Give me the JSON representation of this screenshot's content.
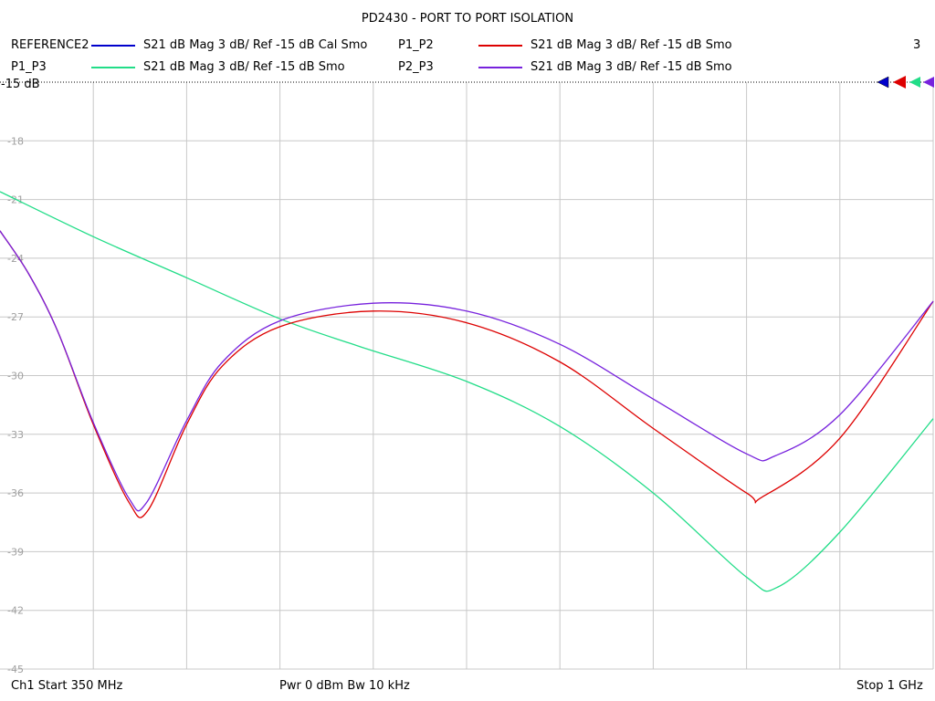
{
  "title": "PD2430 - PORT TO PORT ISOLATION",
  "legend": [
    {
      "name": "REFERENCE2",
      "desc": "S21  dB Mag  3 dB/ Ref -15 dB  Cal Smo",
      "color": "#0000cc"
    },
    {
      "name": "P1_P2",
      "desc": "S21  dB Mag  3 dB/ Ref -15 dB  Smo",
      "color": "#dd0000"
    },
    {
      "name": "P1_P3",
      "desc": "S21  dB Mag  3 dB/ Ref -15 dB  Smo",
      "color": "#22dd88"
    },
    {
      "name": "P2_P3",
      "desc": "S21  dB Mag  3 dB/ Ref -15 dB  Smo",
      "color": "#7722dd"
    }
  ],
  "channel_count": "3",
  "ref_label": "-15 dB",
  "footer": {
    "start": "Ch1  Start  350 MHz",
    "pwr": "Pwr  0 dBm  Bw  10 kHz",
    "stop": "Stop  1 GHz"
  },
  "chart_data": {
    "type": "line",
    "title": "PD2430 - PORT TO PORT ISOLATION",
    "xlabel": "",
    "ylabel": "",
    "xlim": [
      350,
      1000
    ],
    "ylim": [
      -45,
      -15
    ],
    "y_ticks": [
      -15,
      -18,
      -21,
      -24,
      -27,
      -30,
      -33,
      -36,
      -39,
      -42,
      -45
    ],
    "y_tick_labels": [
      "-15",
      "-18",
      "-21",
      "-24",
      "-27",
      "-30",
      "-33",
      "-36",
      "-39",
      "-42",
      "-45"
    ],
    "grid": true,
    "series": [
      {
        "name": "P1_P3",
        "color": "#22dd88",
        "x": [
          350,
          415,
          480,
          545,
          600,
          675,
          740,
          805,
          870,
          892,
          935,
          1000
        ],
        "y": [
          -20.6,
          -22.9,
          -25.0,
          -27.1,
          -28.5,
          -30.3,
          -32.6,
          -36.0,
          -40.3,
          -40.8,
          -38.0,
          -32.2
        ]
      },
      {
        "name": "P1_P2",
        "color": "#dd0000",
        "x": [
          350,
          370,
          390,
          415,
          440,
          453,
          480,
          505,
          545,
          610,
          675,
          740,
          805,
          870,
          881,
          935,
          1000
        ],
        "y": [
          -22.6,
          -24.8,
          -27.7,
          -32.5,
          -36.5,
          -36.9,
          -32.5,
          -29.5,
          -27.5,
          -26.7,
          -27.3,
          -29.3,
          -32.7,
          -36.0,
          -36.2,
          -33.2,
          -26.2
        ]
      },
      {
        "name": "P2_P3",
        "color": "#7722dd",
        "x": [
          350,
          370,
          390,
          415,
          440,
          452,
          480,
          505,
          545,
          610,
          675,
          740,
          805,
          870,
          890,
          935,
          1000
        ],
        "y": [
          -22.6,
          -24.8,
          -27.7,
          -32.4,
          -36.3,
          -36.5,
          -32.3,
          -29.3,
          -27.2,
          -26.3,
          -26.7,
          -28.4,
          -31.2,
          -34.0,
          -34.1,
          -32.0,
          -26.2
        ]
      }
    ]
  }
}
